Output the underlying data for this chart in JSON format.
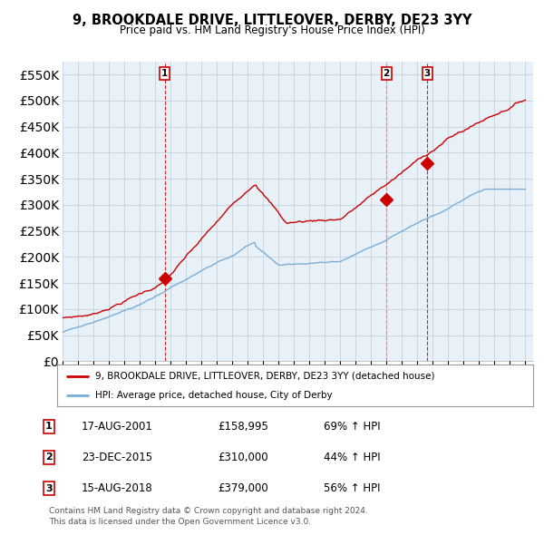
{
  "title": "9, BROOKDALE DRIVE, LITTLEOVER, DERBY, DE23 3YY",
  "subtitle": "Price paid vs. HM Land Registry's House Price Index (HPI)",
  "ylim": [
    0,
    575000
  ],
  "yticks": [
    0,
    50000,
    100000,
    150000,
    200000,
    250000,
    300000,
    350000,
    400000,
    450000,
    500000,
    550000
  ],
  "sale_color": "#cc0000",
  "hpi_color": "#7aaed6",
  "vline_color": "#cc0000",
  "chart_bg": "#e8f0f8",
  "sales": [
    {
      "date_num": 2001.63,
      "price": 158995,
      "label": "1"
    },
    {
      "date_num": 2015.98,
      "price": 310000,
      "label": "2"
    },
    {
      "date_num": 2018.63,
      "price": 379000,
      "label": "3"
    }
  ],
  "legend_entries": [
    "9, BROOKDALE DRIVE, LITTLEOVER, DERBY, DE23 3YY (detached house)",
    "HPI: Average price, detached house, City of Derby"
  ],
  "table_rows": [
    {
      "num": "1",
      "date": "17-AUG-2001",
      "price": "£158,995",
      "change": "69% ↑ HPI"
    },
    {
      "num": "2",
      "date": "23-DEC-2015",
      "price": "£310,000",
      "change": "44% ↑ HPI"
    },
    {
      "num": "3",
      "date": "15-AUG-2018",
      "price": "£379,000",
      "change": "56% ↑ HPI"
    }
  ],
  "footer": "Contains HM Land Registry data © Crown copyright and database right 2024.\nThis data is licensed under the Open Government Licence v3.0.",
  "background_color": "#ffffff",
  "grid_color": "#c0ccd8"
}
